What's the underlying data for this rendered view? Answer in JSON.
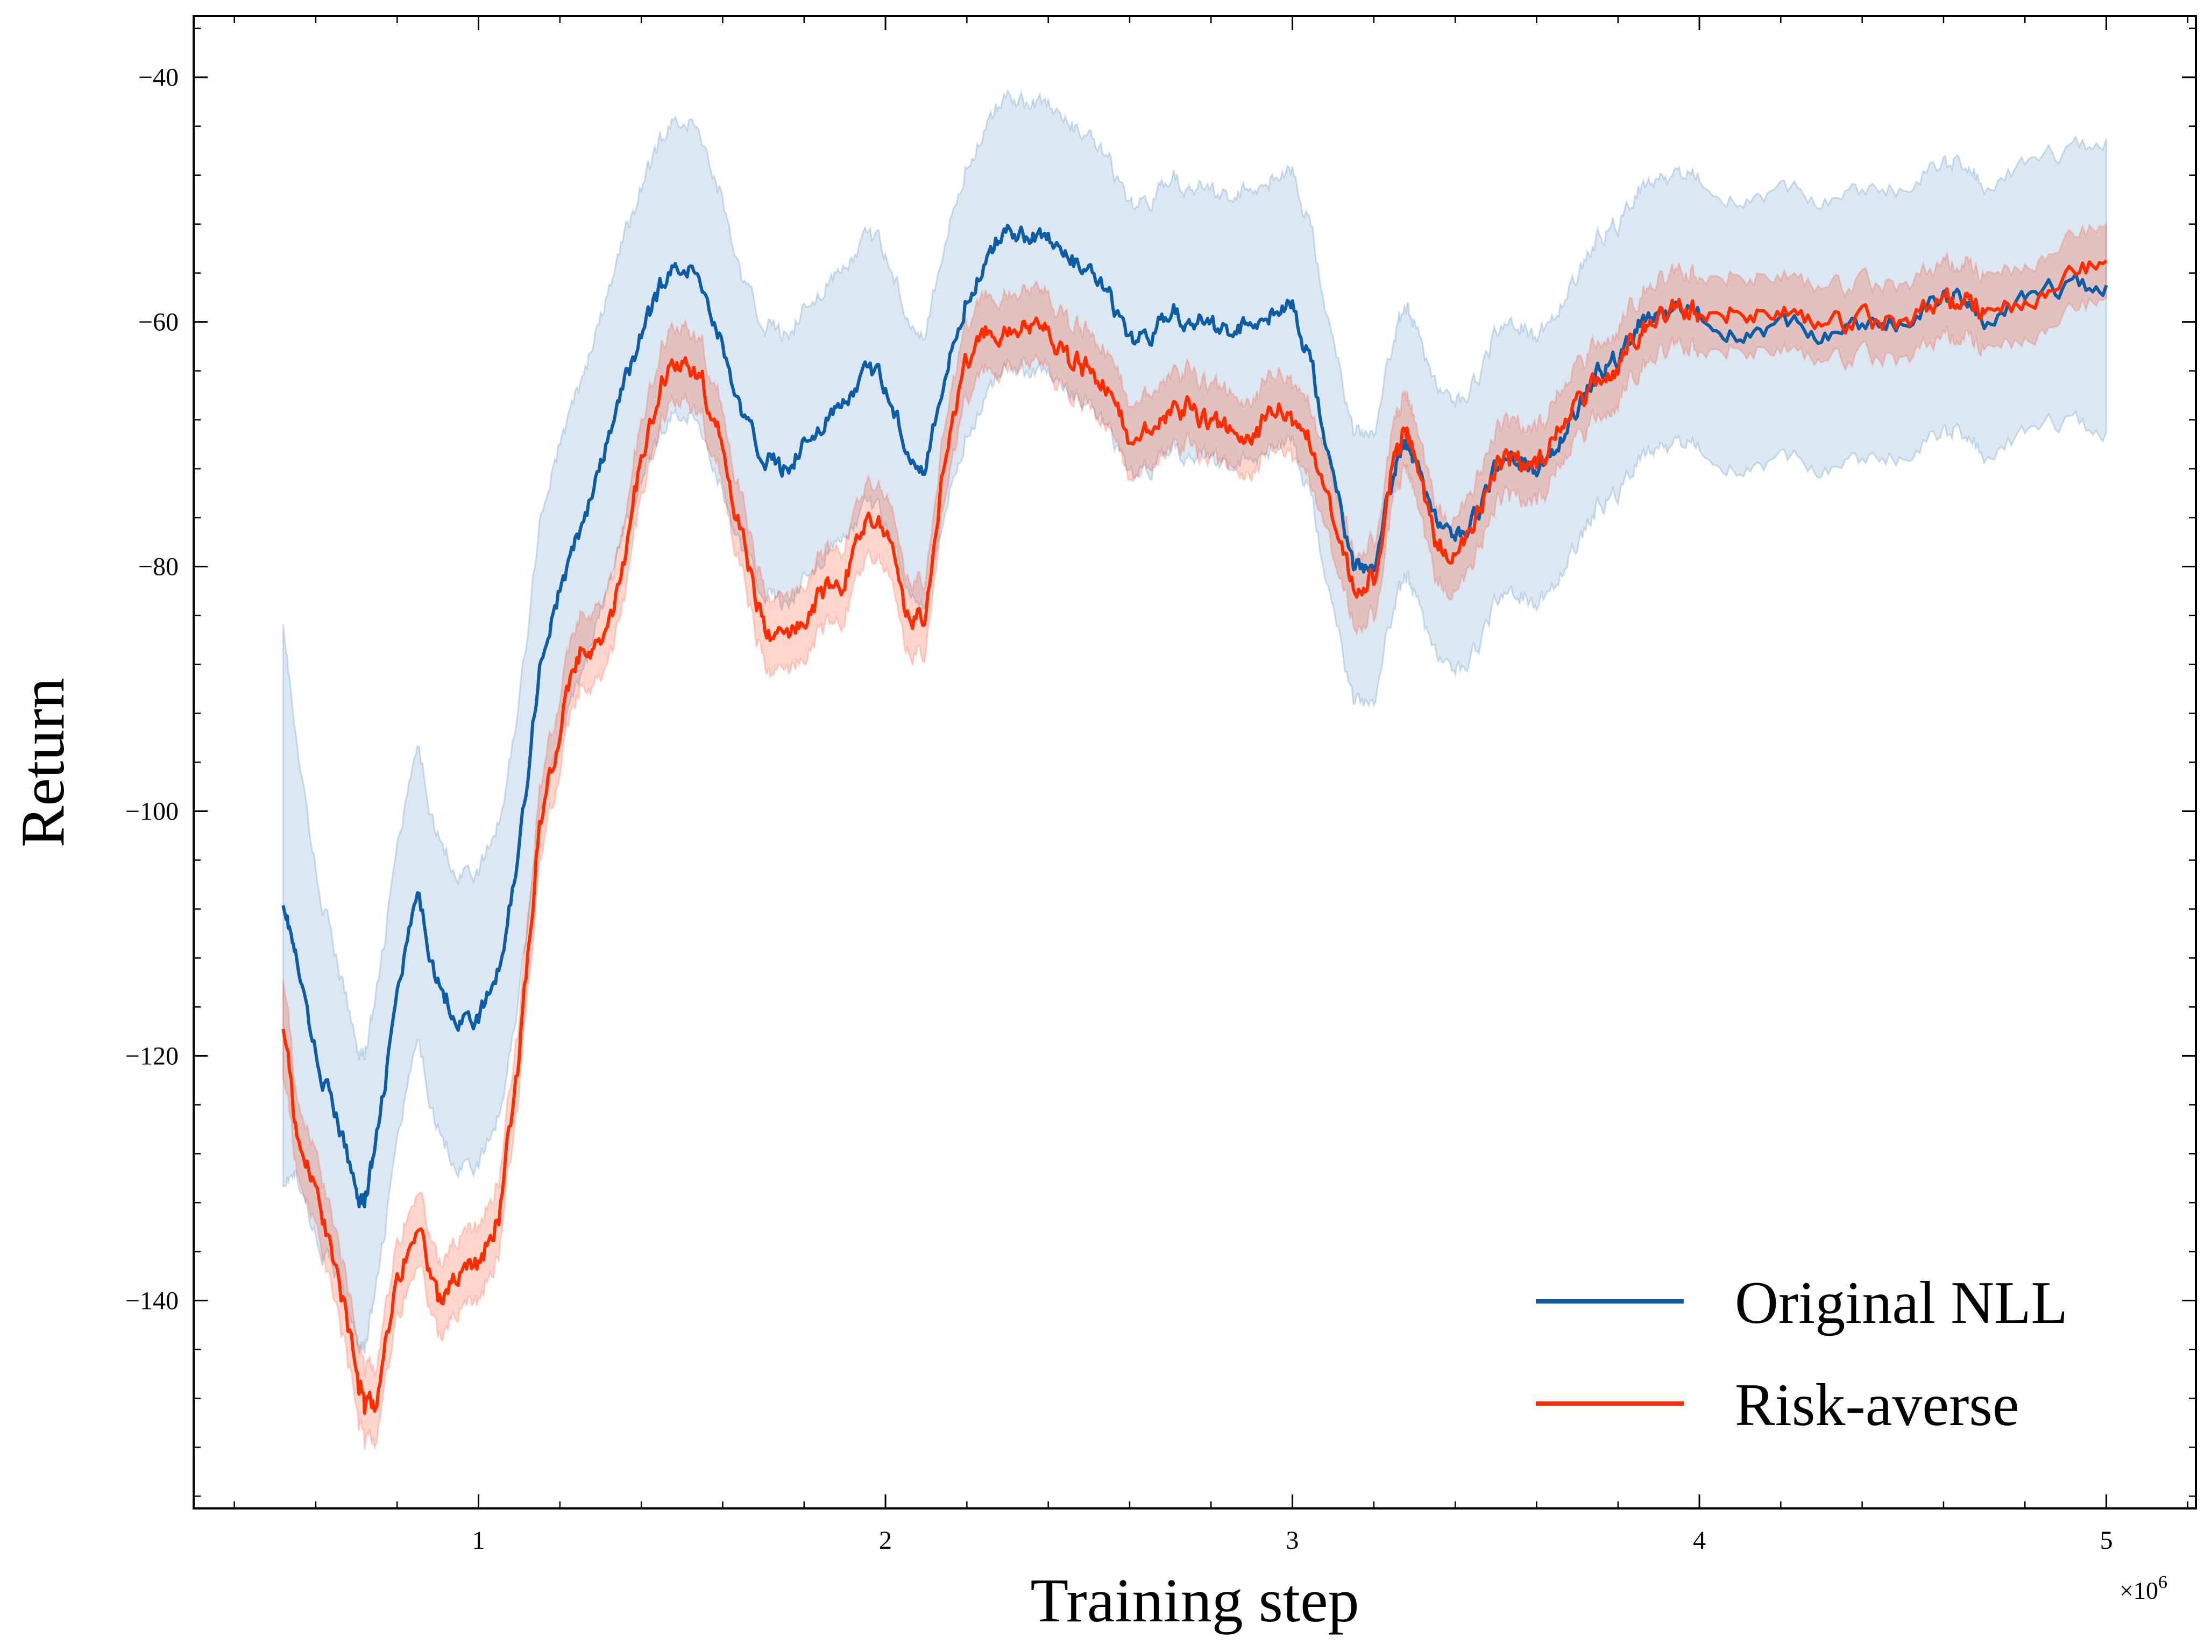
{
  "chart_data": {
    "type": "line",
    "title": "",
    "xlabel": "Training step",
    "ylabel": "Return",
    "x_multiplier_label": "×10",
    "x_multiplier_exp": "6",
    "xlim": [
      0.3,
      5.22
    ],
    "ylim": [
      -157,
      -35
    ],
    "xticks": [
      1,
      2,
      3,
      4,
      5
    ],
    "xtick_labels": [
      "1",
      "2",
      "3",
      "4",
      "5"
    ],
    "yticks": [
      -40,
      -60,
      -80,
      -100,
      -120,
      -140
    ],
    "ytick_labels": [
      "−40",
      "−60",
      "−80",
      "−100",
      "−120",
      "−140"
    ],
    "grid": false,
    "legend_position": "bottom-right",
    "x": [
      0.52,
      0.55,
      0.6,
      0.65,
      0.7,
      0.72,
      0.75,
      0.8,
      0.85,
      0.9,
      0.95,
      1.0,
      1.05,
      1.1,
      1.15,
      1.2,
      1.25,
      1.3,
      1.35,
      1.4,
      1.45,
      1.5,
      1.55,
      1.6,
      1.65,
      1.7,
      1.75,
      1.8,
      1.85,
      1.9,
      1.95,
      2.0,
      2.05,
      2.1,
      2.15,
      2.2,
      2.25,
      2.3,
      2.35,
      2.4,
      2.45,
      2.5,
      2.55,
      2.6,
      2.65,
      2.7,
      2.75,
      2.8,
      2.85,
      2.9,
      2.95,
      3.0,
      3.05,
      3.1,
      3.15,
      3.2,
      3.25,
      3.28,
      3.3,
      3.35,
      3.4,
      3.45,
      3.5,
      3.55,
      3.6,
      3.65,
      3.7,
      3.75,
      3.8,
      3.85,
      3.9,
      3.95,
      4.0,
      4.1,
      4.2,
      4.3,
      4.4,
      4.5,
      4.6,
      4.65,
      4.7,
      4.8,
      4.9,
      5.0
    ],
    "series": [
      {
        "name": "Original NLL",
        "color": "#0C5DA5",
        "band_color": "#0C5DA5",
        "values": [
          -107,
          -112,
          -120,
          -125,
          -131,
          -132,
          -127,
          -115,
          -107,
          -114,
          -117,
          -117,
          -113,
          -103,
          -88,
          -82,
          -77,
          -72,
          -66,
          -61,
          -57,
          -55,
          -57,
          -62,
          -68,
          -71,
          -72,
          -70,
          -68,
          -67,
          -64,
          -65,
          -70,
          -72,
          -64,
          -58,
          -55,
          -52,
          -53,
          -53,
          -55,
          -56,
          -58,
          -62,
          -61,
          -59,
          -60,
          -60,
          -61,
          -60,
          -59,
          -59,
          -64,
          -73,
          -80,
          -80,
          -72,
          -70,
          -71,
          -76,
          -78,
          -76,
          -72,
          -71,
          -72,
          -70,
          -67,
          -64,
          -63,
          -60,
          -59,
          -59,
          -59,
          -61,
          -60,
          -61,
          -60,
          -60,
          -58,
          -58,
          -60,
          -58,
          -57,
          -57
        ],
        "spread": [
          23,
          18,
          15,
          13,
          12,
          12,
          12,
          12,
          12,
          12,
          12,
          12,
          12,
          12,
          12,
          12,
          12,
          12,
          12,
          12,
          12,
          12,
          12,
          12,
          11,
          11,
          11,
          11,
          11,
          11,
          11,
          11,
          11,
          11,
          11,
          11,
          11,
          11,
          11,
          11,
          11,
          11,
          11,
          11,
          11,
          11,
          11,
          11,
          11,
          11,
          11,
          11,
          11,
          11,
          11,
          11,
          11,
          11,
          11,
          11,
          11,
          11,
          11,
          11,
          11,
          11,
          11,
          11,
          11,
          11,
          11,
          11,
          11,
          11,
          11,
          11,
          11,
          11,
          11,
          11,
          11,
          11,
          11,
          12
        ]
      },
      {
        "name": "Risk-averse",
        "color": "#FF2C00",
        "band_color": "#FF2C00",
        "values": [
          -117,
          -126,
          -131,
          -137,
          -146,
          -149,
          -148,
          -138,
          -134,
          -140,
          -138,
          -137,
          -133,
          -120,
          -101,
          -93,
          -87,
          -87,
          -81,
          -71,
          -65,
          -63,
          -65,
          -70,
          -78,
          -85,
          -86,
          -84,
          -82,
          -81,
          -76,
          -77,
          -84,
          -84,
          -70,
          -63,
          -61,
          -61,
          -60,
          -61,
          -63,
          -64,
          -65,
          -70,
          -69,
          -67,
          -67,
          -68,
          -69,
          -70,
          -67,
          -68,
          -70,
          -76,
          -82,
          -81,
          -71,
          -69,
          -71,
          -78,
          -79,
          -76,
          -72,
          -71,
          -72,
          -69,
          -67,
          -65,
          -64,
          -61,
          -59,
          -59,
          -59,
          -59,
          -59,
          -60,
          -60,
          -60,
          -58,
          -58,
          -59,
          -58,
          -56,
          -55
        ],
        "spread": [
          4,
          3,
          3,
          3,
          3,
          3,
          3,
          3,
          3,
          3,
          3,
          3,
          3,
          3,
          3,
          3,
          3,
          3,
          3,
          3,
          3,
          3,
          3,
          3,
          3,
          3,
          3,
          3,
          3,
          3,
          3,
          3,
          3,
          3,
          3,
          3,
          3,
          3,
          3,
          3,
          3,
          3,
          3,
          3,
          3,
          3,
          3,
          3,
          3,
          3,
          3,
          3,
          3,
          3,
          3,
          3,
          3,
          3,
          3,
          3,
          3,
          3,
          3,
          3,
          3,
          3,
          3,
          3,
          3,
          3,
          3,
          3,
          3,
          3,
          3,
          3,
          3,
          3,
          3,
          3,
          3,
          3,
          3,
          3
        ]
      }
    ]
  }
}
